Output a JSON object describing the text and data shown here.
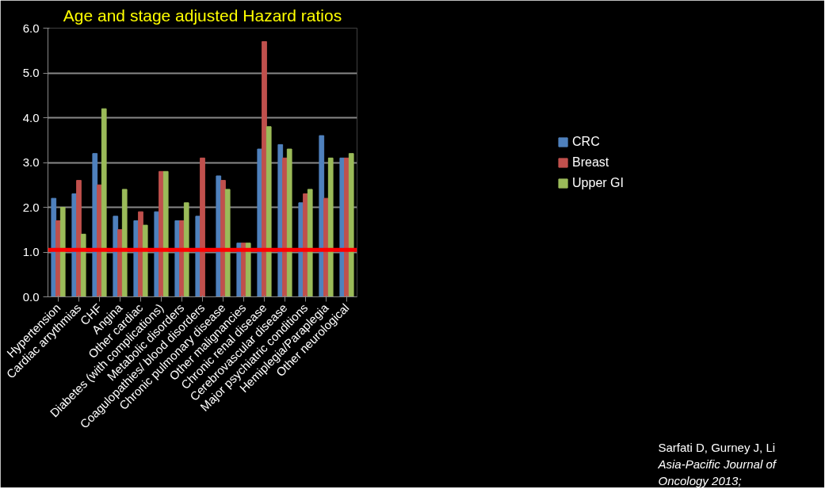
{
  "chart_data": {
    "type": "bar",
    "title": "Age and stage adjusted Hazard ratios",
    "categories": [
      "Hypertension",
      "Cardiac arrythmias",
      "CHF",
      "Angina",
      "Other cardiac",
      "Diabetes (with complications)",
      "Metabolic disorders",
      "Coagulopathies/ blood disorders",
      "Chronic pulmonary disease",
      "Other malignancies",
      "Chronic renal disease",
      "Cerebrovascular disease",
      "Major psychiatric conditions",
      "Hemiplegia/Paraplegia",
      "Other neurological"
    ],
    "series": [
      {
        "name": "CRC",
        "color": "#4f81bd",
        "values": [
          2.2,
          2.3,
          3.2,
          1.8,
          1.7,
          1.9,
          1.7,
          1.8,
          2.7,
          1.2,
          3.3,
          3.4,
          2.1,
          3.6,
          3.1
        ]
      },
      {
        "name": "Breast",
        "color": "#c0504d",
        "values": [
          1.7,
          2.6,
          2.5,
          1.5,
          1.9,
          2.8,
          1.7,
          3.1,
          2.6,
          1.2,
          5.7,
          3.1,
          2.3,
          2.2,
          3.1
        ]
      },
      {
        "name": "Upper GI",
        "color": "#9bbb59",
        "values": [
          2.0,
          1.4,
          4.2,
          2.4,
          1.6,
          2.8,
          2.1,
          null,
          2.4,
          1.2,
          3.8,
          3.3,
          2.4,
          3.1,
          3.2
        ]
      }
    ],
    "ylim": [
      0,
      6
    ],
    "yticks": [
      {
        "value": 0,
        "label": "0.0"
      },
      {
        "value": 1,
        "label": "1.0"
      },
      {
        "value": 2,
        "label": "2.0"
      },
      {
        "value": 3,
        "label": "3.0"
      },
      {
        "value": 4,
        "label": "4.0"
      },
      {
        "value": 5,
        "label": "5.0"
      },
      {
        "value": 6,
        "label": "6.0"
      }
    ],
    "grid": "y",
    "legend": "right",
    "ref_lines": [
      {
        "axis": "y",
        "value": 1.05,
        "color": "#ff0000"
      }
    ],
    "annotations": [
      "Sarfati D, Gurney J, Li",
      "Asia-Pacific Journal of",
      "Oncology 2013;"
    ]
  }
}
